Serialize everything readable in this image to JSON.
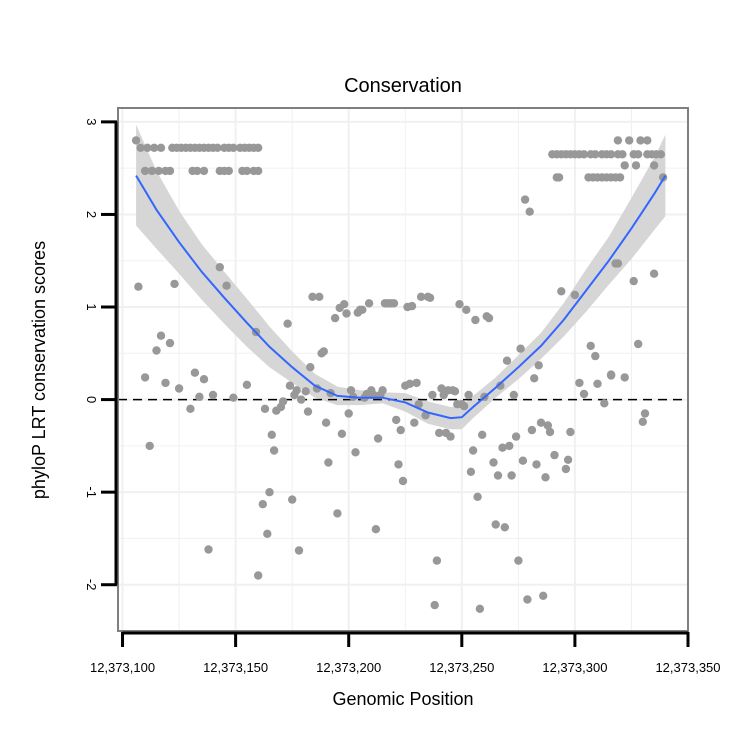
{
  "chart_data": {
    "type": "scatter",
    "title": "Conservation",
    "xlabel": "Genomic Position",
    "ylabel": "phyloP LRT conservation scores",
    "xlim": [
      12373098,
      12373350
    ],
    "ylim": [
      -2.5,
      3.15
    ],
    "xticks": [
      12373100,
      12373150,
      12373200,
      12373250,
      12373300,
      12373350
    ],
    "xtick_labels": [
      "12,373,100",
      "12,373,150",
      "12,373,200",
      "12,373,250",
      "12,373,300",
      "12,373,350"
    ],
    "yticks": [
      -2,
      -1,
      0,
      1,
      2,
      3
    ],
    "ytick_labels": [
      "-2",
      "-1",
      "0",
      "1",
      "2",
      "3"
    ],
    "hline": {
      "y": 0,
      "style": "dashed"
    },
    "grid": true,
    "colors": {
      "points": "#989898",
      "smooth": "#3366FF",
      "band": "#d6d6d6",
      "panel_border": "#7f7f7f",
      "grid": "#f0f0f0"
    },
    "points": [
      [
        12373106,
        2.8
      ],
      [
        12373108,
        2.72
      ],
      [
        12373111,
        2.72
      ],
      [
        12373114,
        2.72
      ],
      [
        12373117,
        2.72
      ],
      [
        12373110,
        2.47
      ],
      [
        12373113,
        2.47
      ],
      [
        12373116,
        2.47
      ],
      [
        12373119,
        2.47
      ],
      [
        12373121,
        2.47
      ],
      [
        12373122,
        2.72
      ],
      [
        12373124,
        2.72
      ],
      [
        12373126,
        2.72
      ],
      [
        12373128,
        2.72
      ],
      [
        12373130,
        2.72
      ],
      [
        12373132,
        2.72
      ],
      [
        12373134,
        2.72
      ],
      [
        12373136,
        2.72
      ],
      [
        12373138,
        2.72
      ],
      [
        12373140,
        2.72
      ],
      [
        12373142,
        2.72
      ],
      [
        12373145,
        2.72
      ],
      [
        12373147,
        2.72
      ],
      [
        12373149,
        2.72
      ],
      [
        12373152,
        2.72
      ],
      [
        12373154,
        2.72
      ],
      [
        12373156,
        2.72
      ],
      [
        12373158,
        2.72
      ],
      [
        12373160,
        2.72
      ],
      [
        12373131,
        2.47
      ],
      [
        12373133,
        2.47
      ],
      [
        12373136,
        2.47
      ],
      [
        12373143,
        2.47
      ],
      [
        12373145,
        2.47
      ],
      [
        12373147,
        2.47
      ],
      [
        12373153,
        2.47
      ],
      [
        12373155,
        2.47
      ],
      [
        12373158,
        2.47
      ],
      [
        12373160,
        2.47
      ],
      [
        12373107,
        1.22
      ],
      [
        12373110,
        0.24
      ],
      [
        12373112,
        -0.5
      ],
      [
        12373115,
        0.53
      ],
      [
        12373117,
        0.69
      ],
      [
        12373119,
        0.18
      ],
      [
        12373121,
        0.61
      ],
      [
        12373123,
        1.25
      ],
      [
        12373125,
        0.12
      ],
      [
        12373130,
        -0.1
      ],
      [
        12373132,
        0.29
      ],
      [
        12373134,
        0.03
      ],
      [
        12373136,
        0.22
      ],
      [
        12373138,
        -1.62
      ],
      [
        12373140,
        0.05
      ],
      [
        12373143,
        1.43
      ],
      [
        12373146,
        1.23
      ],
      [
        12373149,
        0.02
      ],
      [
        12373155,
        0.16
      ],
      [
        12373159,
        0.73
      ],
      [
        12373160,
        -1.9
      ],
      [
        12373162,
        -1.13
      ],
      [
        12373163,
        -0.1
      ],
      [
        12373164,
        -1.45
      ],
      [
        12373165,
        -1.0
      ],
      [
        12373166,
        -0.38
      ],
      [
        12373167,
        -0.55
      ],
      [
        12373168,
        -0.12
      ],
      [
        12373170,
        -0.08
      ],
      [
        12373171,
        -0.02
      ],
      [
        12373173,
        0.82
      ],
      [
        12373174,
        0.15
      ],
      [
        12373175,
        -1.08
      ],
      [
        12373176,
        0.05
      ],
      [
        12373177,
        0.1
      ],
      [
        12373178,
        -1.63
      ],
      [
        12373179,
        0.0
      ],
      [
        12373181,
        0.09
      ],
      [
        12373182,
        -0.13
      ],
      [
        12373183,
        0.35
      ],
      [
        12373184,
        1.11
      ],
      [
        12373186,
        0.12
      ],
      [
        12373187,
        1.11
      ],
      [
        12373188,
        0.5
      ],
      [
        12373189,
        0.52
      ],
      [
        12373190,
        -0.25
      ],
      [
        12373191,
        -0.68
      ],
      [
        12373192,
        0.07
      ],
      [
        12373194,
        0.88
      ],
      [
        12373195,
        -1.23
      ],
      [
        12373196,
        0.99
      ],
      [
        12373197,
        -0.37
      ],
      [
        12373198,
        1.03
      ],
      [
        12373199,
        0.93
      ],
      [
        12373200,
        -0.15
      ],
      [
        12373201,
        0.1
      ],
      [
        12373202,
        0.03
      ],
      [
        12373203,
        -0.57
      ],
      [
        12373204,
        0.94
      ],
      [
        12373205,
        0.97
      ],
      [
        12373206,
        0.97
      ],
      [
        12373207,
        0.02
      ],
      [
        12373208,
        0.06
      ],
      [
        12373209,
        1.04
      ],
      [
        12373210,
        0.1
      ],
      [
        12373211,
        0.05
      ],
      [
        12373212,
        -1.4
      ],
      [
        12373213,
        -0.42
      ],
      [
        12373214,
        0.05
      ],
      [
        12373215,
        0.1
      ],
      [
        12373216,
        1.04
      ],
      [
        12373217,
        1.04
      ],
      [
        12373218,
        1.04
      ],
      [
        12373219,
        1.04
      ],
      [
        12373220,
        1.04
      ],
      [
        12373221,
        -0.22
      ],
      [
        12373222,
        -0.7
      ],
      [
        12373223,
        -0.33
      ],
      [
        12373224,
        -0.88
      ],
      [
        12373225,
        0.15
      ],
      [
        12373226,
        1.0
      ],
      [
        12373227,
        0.17
      ],
      [
        12373228,
        1.01
      ],
      [
        12373229,
        -0.25
      ],
      [
        12373230,
        0.18
      ],
      [
        12373231,
        -0.05
      ],
      [
        12373232,
        1.11
      ],
      [
        12373234,
        -0.17
      ],
      [
        12373235,
        1.11
      ],
      [
        12373236,
        1.1
      ],
      [
        12373237,
        0.05
      ],
      [
        12373238,
        -2.22
      ],
      [
        12373239,
        -1.74
      ],
      [
        12373240,
        -0.36
      ],
      [
        12373241,
        0.12
      ],
      [
        12373242,
        0.05
      ],
      [
        12373243,
        -0.36
      ],
      [
        12373244,
        0.1
      ],
      [
        12373245,
        -0.4
      ],
      [
        12373246,
        0.1
      ],
      [
        12373247,
        0.09
      ],
      [
        12373248,
        -0.05
      ],
      [
        12373249,
        1.03
      ],
      [
        12373250,
        -0.05
      ],
      [
        12373251,
        -0.07
      ],
      [
        12373252,
        0.97
      ],
      [
        12373253,
        0.05
      ],
      [
        12373254,
        -0.78
      ],
      [
        12373255,
        -0.55
      ],
      [
        12373256,
        0.86
      ],
      [
        12373257,
        -1.05
      ],
      [
        12373258,
        -2.26
      ],
      [
        12373259,
        -0.38
      ],
      [
        12373260,
        0.03
      ],
      [
        12373261,
        0.9
      ],
      [
        12373262,
        0.88
      ],
      [
        12373264,
        -0.68
      ],
      [
        12373265,
        -1.35
      ],
      [
        12373266,
        -0.82
      ],
      [
        12373267,
        0.15
      ],
      [
        12373268,
        -0.52
      ],
      [
        12373269,
        -1.38
      ],
      [
        12373270,
        0.42
      ],
      [
        12373271,
        -0.5
      ],
      [
        12373272,
        -0.82
      ],
      [
        12373273,
        0.05
      ],
      [
        12373274,
        -0.4
      ],
      [
        12373275,
        -1.74
      ],
      [
        12373276,
        0.55
      ],
      [
        12373277,
        -0.66
      ],
      [
        12373278,
        2.16
      ],
      [
        12373279,
        -2.16
      ],
      [
        12373280,
        2.03
      ],
      [
        12373281,
        -0.33
      ],
      [
        12373282,
        0.23
      ],
      [
        12373283,
        -0.7
      ],
      [
        12373284,
        0.37
      ],
      [
        12373285,
        -0.25
      ],
      [
        12373286,
        -2.12
      ],
      [
        12373287,
        -0.84
      ],
      [
        12373288,
        -0.28
      ],
      [
        12373289,
        -0.35
      ],
      [
        12373291,
        -0.6
      ],
      [
        12373292,
        2.4
      ],
      [
        12373294,
        1.17
      ],
      [
        12373296,
        -0.75
      ],
      [
        12373297,
        -0.65
      ],
      [
        12373298,
        -0.35
      ],
      [
        12373300,
        1.13
      ],
      [
        12373290,
        2.65
      ],
      [
        12373292,
        2.65
      ],
      [
        12373294,
        2.65
      ],
      [
        12373296,
        2.65
      ],
      [
        12373298,
        2.65
      ],
      [
        12373300,
        2.65
      ],
      [
        12373302,
        2.65
      ],
      [
        12373304,
        2.65
      ],
      [
        12373307,
        2.65
      ],
      [
        12373309,
        2.65
      ],
      [
        12373312,
        2.65
      ],
      [
        12373314,
        2.65
      ],
      [
        12373316,
        2.65
      ],
      [
        12373319,
        2.65
      ],
      [
        12373321,
        2.65
      ],
      [
        12373326,
        2.65
      ],
      [
        12373328,
        2.65
      ],
      [
        12373332,
        2.65
      ],
      [
        12373334,
        2.65
      ],
      [
        12373336,
        2.65
      ],
      [
        12373338,
        2.65
      ],
      [
        12373293,
        2.4
      ],
      [
        12373306,
        2.4
      ],
      [
        12373308,
        2.4
      ],
      [
        12373310,
        2.4
      ],
      [
        12373312,
        2.4
      ],
      [
        12373314,
        2.4
      ],
      [
        12373316,
        2.4
      ],
      [
        12373318,
        2.4
      ],
      [
        12373320,
        2.4
      ],
      [
        12373339,
        2.4
      ],
      [
        12373319,
        2.8
      ],
      [
        12373324,
        2.8
      ],
      [
        12373329,
        2.8
      ],
      [
        12373332,
        2.8
      ],
      [
        12373322,
        2.53
      ],
      [
        12373327,
        2.53
      ],
      [
        12373335,
        2.53
      ],
      [
        12373302,
        0.18
      ],
      [
        12373304,
        0.06
      ],
      [
        12373307,
        0.58
      ],
      [
        12373309,
        0.47
      ],
      [
        12373313,
        -0.04
      ],
      [
        12373316,
        0.26
      ],
      [
        12373318,
        1.47
      ],
      [
        12373319,
        1.47
      ],
      [
        12373322,
        0.24
      ],
      [
        12373326,
        1.28
      ],
      [
        12373328,
        0.6
      ],
      [
        12373330,
        -0.24
      ],
      [
        12373331,
        -0.15
      ],
      [
        12373335,
        1.36
      ],
      [
        12373316,
        0.27
      ],
      [
        12373310,
        0.17
      ]
    ],
    "smooth": {
      "x": [
        12373106,
        12373115,
        12373125,
        12373135,
        12373145,
        12373155,
        12373165,
        12373175,
        12373185,
        12373195,
        12373205,
        12373215,
        12373225,
        12373235,
        12373245,
        12373250,
        12373255,
        12373265,
        12373275,
        12373285,
        12373295,
        12373305,
        12373315,
        12373325,
        12373335,
        12373340
      ],
      "y": [
        2.42,
        2.05,
        1.7,
        1.38,
        1.1,
        0.83,
        0.57,
        0.35,
        0.15,
        0.04,
        0.02,
        0.02,
        -0.03,
        -0.14,
        -0.2,
        -0.19,
        -0.08,
        0.13,
        0.35,
        0.58,
        0.86,
        1.18,
        1.5,
        1.85,
        2.22,
        2.42
      ],
      "lo": [
        1.88,
        1.63,
        1.36,
        1.08,
        0.82,
        0.57,
        0.35,
        0.18,
        0.02,
        -0.06,
        -0.06,
        -0.04,
        -0.13,
        -0.26,
        -0.32,
        -0.32,
        -0.2,
        0.02,
        0.22,
        0.44,
        0.68,
        0.95,
        1.24,
        1.52,
        1.83,
        1.98
      ],
      "hi": [
        2.97,
        2.47,
        2.04,
        1.68,
        1.38,
        1.09,
        0.79,
        0.52,
        0.28,
        0.14,
        0.1,
        0.08,
        0.07,
        -0.02,
        -0.08,
        -0.06,
        0.04,
        0.24,
        0.48,
        0.72,
        1.04,
        1.41,
        1.76,
        2.18,
        2.61,
        2.86
      ]
    }
  }
}
